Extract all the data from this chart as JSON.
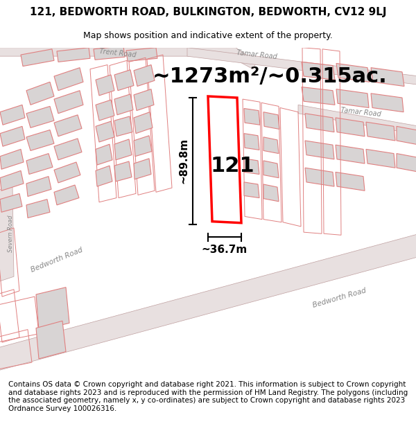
{
  "title": "121, BEDWORTH ROAD, BULKINGTON, BEDWORTH, CV12 9LJ",
  "subtitle": "Map shows position and indicative extent of the property.",
  "area_text": "~1273m²/~0.315ac.",
  "width_text": "~36.7m",
  "height_text": "~89.8m",
  "number_text": "121",
  "footer": "Contains OS data © Crown copyright and database right 2021. This information is subject to Crown copyright and database rights 2023 and is reproduced with the permission of HM Land Registry. The polygons (including the associated geometry, namely x, y co-ordinates) are subject to Crown copyright and database rights 2023 Ordnance Survey 100026316.",
  "bg_color": "#ffffff",
  "map_bg": "#ffffff",
  "road_fill": "#e8e0e0",
  "building_fill": "#d8d4d4",
  "building_edge": "#e08080",
  "parcel_edge": "#e08080",
  "road_edge": "#c0a0a0",
  "highlight_color": "#ff0000",
  "road_label_color": "#888888",
  "text_color": "#000000",
  "title_fontsize": 11,
  "subtitle_fontsize": 9,
  "area_fontsize": 22,
  "number_fontsize": 22,
  "footer_fontsize": 7.5
}
